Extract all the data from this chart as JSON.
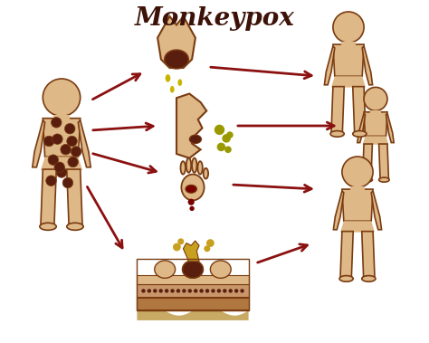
{
  "title": "Monkeypox",
  "title_color": "#3d1208",
  "title_fontsize": 20,
  "skin_color": "#deb887",
  "skin_outline": "#7a3b10",
  "spot_dark": "#5a1e0e",
  "arrow_color": "#8b1010",
  "drop_color_yellow": "#c8b400",
  "drop_color_olive": "#9a9a00",
  "blood_color": "#7a0000",
  "layer1_color": "#deb887",
  "layer2_color": "#c8966a",
  "layer3_color": "#b07840",
  "layer4_color": "#c8aa64",
  "wavy_color": "#c8aa64",
  "lesion_fluid_color": "#c8a020",
  "background": "#ffffff",
  "figsize": [
    4.74,
    3.79
  ],
  "dpi": 100
}
